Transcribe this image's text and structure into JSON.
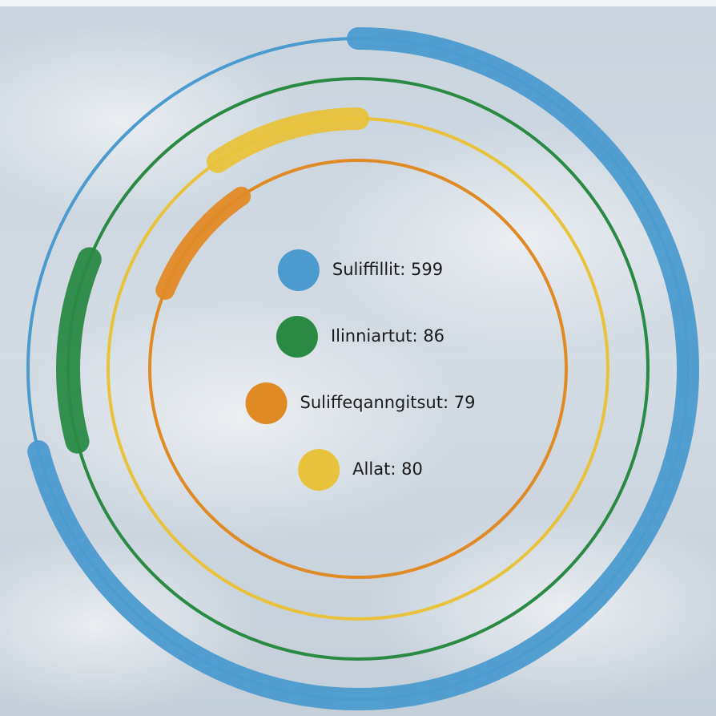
{
  "chart_data": {
    "type": "radial-bar",
    "series": [
      {
        "name": "Suliffillit",
        "color": "#4b9bcf",
        "values": [
          599
        ]
      },
      {
        "name": "Ilinniartut",
        "color": "#2a8a44",
        "values": [
          86
        ]
      },
      {
        "name": "Suliffeqanngitsut",
        "color": "#e08a25",
        "values": [
          79
        ]
      },
      {
        "name": "Allat",
        "color": "#e8c23a",
        "values": [
          80
        ]
      }
    ]
  }
}
